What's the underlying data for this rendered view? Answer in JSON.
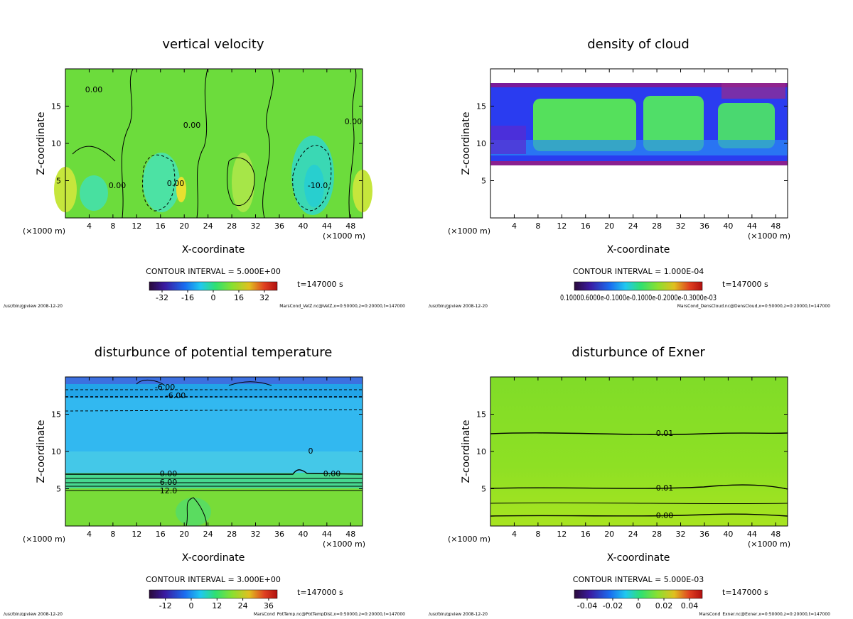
{
  "chart_data": [
    {
      "type": "contour",
      "title": "vertical velocity",
      "xlabel": "X-coordinate",
      "ylabel": "Z-coordinate",
      "x_unit": "(×1000 m)",
      "xlim": [
        0,
        50
      ],
      "ylim": [
        0,
        20
      ],
      "xticks": [
        4,
        8,
        12,
        16,
        20,
        24,
        28,
        32,
        36,
        40,
        44,
        48
      ],
      "yticks": [
        5,
        10,
        15
      ],
      "contour_interval": "CONTOUR INTERVAL = 5.000E+00",
      "time": "t=147000 s",
      "colorbar_lim": [
        -40,
        40
      ],
      "colorbar_ticks": [
        -32,
        -16,
        0,
        16,
        32
      ],
      "program": "/usr/bin/gpview  2008-12-20",
      "source": "MarsCond_VelZ.nc@VelZ,x=0:50000,z=0:20000,t=147000",
      "contour_labels": [
        "0.00",
        "0.00",
        "0.00",
        "0.00",
        "-10.0",
        "0.00"
      ]
    },
    {
      "type": "contour",
      "title": "density of cloud",
      "xlabel": "X-coordinate",
      "ylabel": "Z-coordinate",
      "x_unit": "(×1000 m)",
      "xlim": [
        0,
        50
      ],
      "ylim": [
        0,
        20
      ],
      "xticks": [
        4,
        8,
        12,
        16,
        20,
        24,
        28,
        32,
        36,
        40,
        44,
        48
      ],
      "yticks": [
        5,
        10,
        15
      ],
      "contour_interval": "CONTOUR INTERVAL = 1.000E-04",
      "time": "t=147000 s",
      "colorbar_text": "0.10000.6000e-0.1000e-0.1000e-0.2000e-0.3000e-03",
      "program": "/usr/bin/gpview  2008-12-20",
      "source": "MarsCond_DensCloud.nc@DensCloud,x=0:50000,z=0:20000,t=147000",
      "contour_labels": []
    },
    {
      "type": "contour",
      "title": "disturbunce of potential temperature",
      "xlabel": "X-coordinate",
      "ylabel": "Z-coordinate",
      "x_unit": "(×1000 m)",
      "xlim": [
        0,
        50
      ],
      "ylim": [
        0,
        20
      ],
      "xticks": [
        4,
        8,
        12,
        16,
        20,
        24,
        28,
        32,
        36,
        40,
        44,
        48
      ],
      "yticks": [
        5,
        10,
        15
      ],
      "contour_interval": "CONTOUR INTERVAL = 3.000E+00",
      "time": "t=147000 s",
      "colorbar_lim": [
        -19.5,
        40
      ],
      "colorbar_ticks": [
        -12,
        0,
        12,
        24,
        36
      ],
      "program": "/usr/bin/gpview  2008-12-20",
      "source": "MarsCond_PotTemp.nc@PotTempDist,x=0:50000,z=0:20000,t=147000",
      "contour_labels": [
        "-6.00",
        "-6.00",
        "0.00",
        "6.00",
        "12.0",
        "0.00",
        "0"
      ]
    },
    {
      "type": "contour",
      "title": "disturbunce of Exner",
      "xlabel": "X-coordinate",
      "ylabel": "Z-coordinate",
      "x_unit": "(×1000 m)",
      "xlim": [
        0,
        50
      ],
      "ylim": [
        0,
        20
      ],
      "xticks": [
        4,
        8,
        12,
        16,
        20,
        24,
        28,
        32,
        36,
        40,
        44,
        48
      ],
      "yticks": [
        5,
        10,
        15
      ],
      "contour_interval": "CONTOUR INTERVAL = 5.000E-03",
      "time": "t=147000 s",
      "colorbar_lim": [
        -0.05,
        0.05
      ],
      "colorbar_ticks": [
        -0.04,
        -0.02,
        0,
        0.02,
        0.04
      ],
      "program": "/usr/bin/gpview  2008-12-20",
      "source": "MarsCond_Exner.nc@Exner,x=0:50000,z=0:20000,t=147000",
      "contour_labels": [
        "0.01",
        "0.01",
        "0.00"
      ]
    }
  ]
}
